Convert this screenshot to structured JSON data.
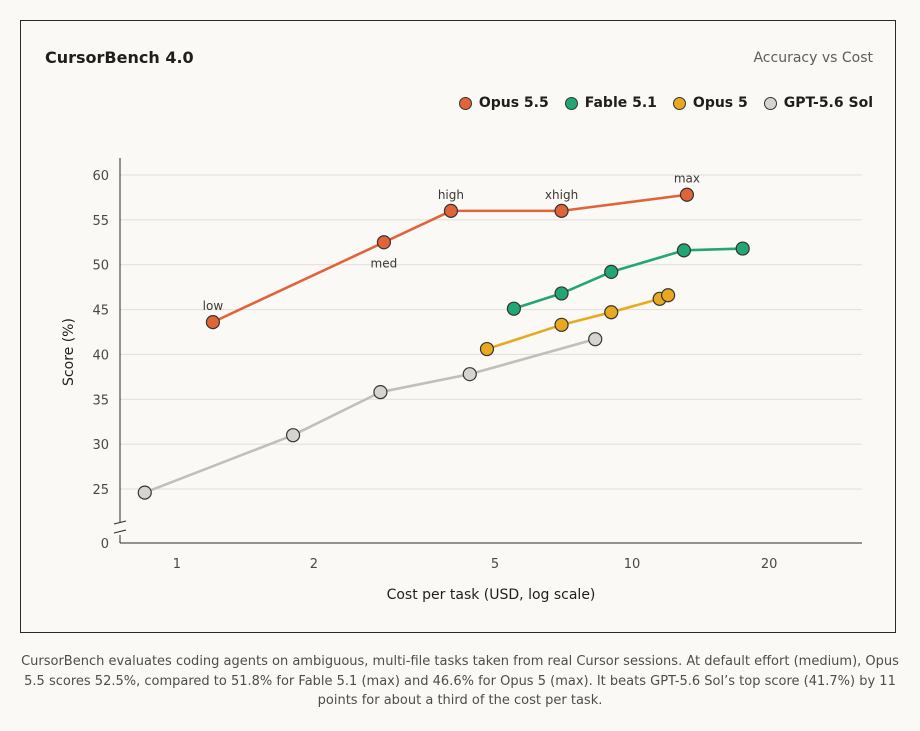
{
  "chart_data": {
    "type": "line",
    "title": "CursorBench 4.0",
    "subtitle": "Accuracy vs Cost",
    "xlabel": "Cost per task (USD, log scale)",
    "ylabel": "Score (%)",
    "xscale": "log",
    "xlim": [
      0.75,
      32
    ],
    "ylim": [
      20,
      62
    ],
    "xticks": [
      1,
      2,
      5,
      10,
      20
    ],
    "xtick_labels": [
      "1",
      "2",
      "5",
      "10",
      "20"
    ],
    "yticks": [
      0,
      25,
      30,
      35,
      40,
      45,
      50,
      55,
      60
    ],
    "ytick_labels": [
      "0",
      "25",
      "30",
      "35",
      "40",
      "45",
      "50",
      "55",
      "60"
    ],
    "axis_break": true,
    "grid": "horizontal",
    "legend_position": "top-right",
    "series": [
      {
        "name": "Opus 5.5",
        "color": "#e0643a",
        "x": [
          1.2,
          2.85,
          4.0,
          7.0,
          13.2
        ],
        "y": [
          43.6,
          52.5,
          56.0,
          56.0,
          57.8
        ],
        "point_labels": [
          "low",
          "med",
          "high",
          "xhigh",
          "max"
        ]
      },
      {
        "name": "Fable 5.1",
        "color": "#22a676",
        "x": [
          5.5,
          7.0,
          9.0,
          13.0,
          17.5
        ],
        "y": [
          45.1,
          46.8,
          49.2,
          51.6,
          51.8
        ]
      },
      {
        "name": "Opus 5",
        "color": "#e8a81f",
        "x": [
          4.8,
          7.0,
          9.0,
          11.5,
          12.0
        ],
        "y": [
          40.6,
          43.3,
          44.7,
          46.2,
          46.6
        ]
      },
      {
        "name": "GPT-5.6 Sol",
        "color": "#d6d4cf",
        "x": [
          0.85,
          1.8,
          2.8,
          4.4,
          8.3
        ],
        "y": [
          24.6,
          31.0,
          35.8,
          37.8,
          41.7
        ]
      }
    ]
  },
  "caption": "CursorBench evaluates coding agents on ambiguous, multi-file tasks taken from real Cursor sessions. At default effort (medium), Opus 5.5 scores 52.5%, compared to 51.8% for Fable 5.1 (max) and 46.6% for Opus 5 (max). It beats GPT-5.6 Sol’s top score (41.7%) by 11 points for about a third of the cost per task."
}
